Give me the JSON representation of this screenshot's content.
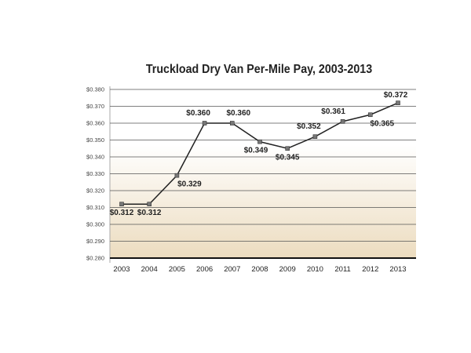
{
  "chart_data": {
    "type": "line",
    "title": "Truckload Dry Van Per-Mile Pay, 2003-2013",
    "xlabel": "",
    "ylabel": "",
    "categories": [
      "2003",
      "2004",
      "2005",
      "2006",
      "2007",
      "2008",
      "2009",
      "2010",
      "2011",
      "2012",
      "2013"
    ],
    "series": [
      {
        "name": "Per-Mile Pay",
        "values": [
          0.312,
          0.312,
          0.329,
          0.36,
          0.36,
          0.349,
          0.345,
          0.352,
          0.361,
          0.365,
          0.372
        ]
      }
    ],
    "data_labels": [
      "$0.312",
      "$0.312",
      "$0.329",
      "$0.360",
      "$0.360",
      "$0.349",
      "$0.345",
      "$0.352",
      "$0.361",
      "$0.365",
      "$0.372"
    ],
    "ylim": [
      0.28,
      0.38
    ],
    "yticks": [
      "$0.280",
      "$0.290",
      "$0.300",
      "$0.310",
      "$0.320",
      "$0.330",
      "$0.340",
      "$0.350",
      "$0.360",
      "$0.370",
      "$0.380"
    ],
    "grid": true,
    "legend": "none",
    "colors": {
      "line": "#222222",
      "marker": "#777777",
      "bg_top": "#ffffff",
      "bg_bottom": "#ecdcbf"
    }
  }
}
